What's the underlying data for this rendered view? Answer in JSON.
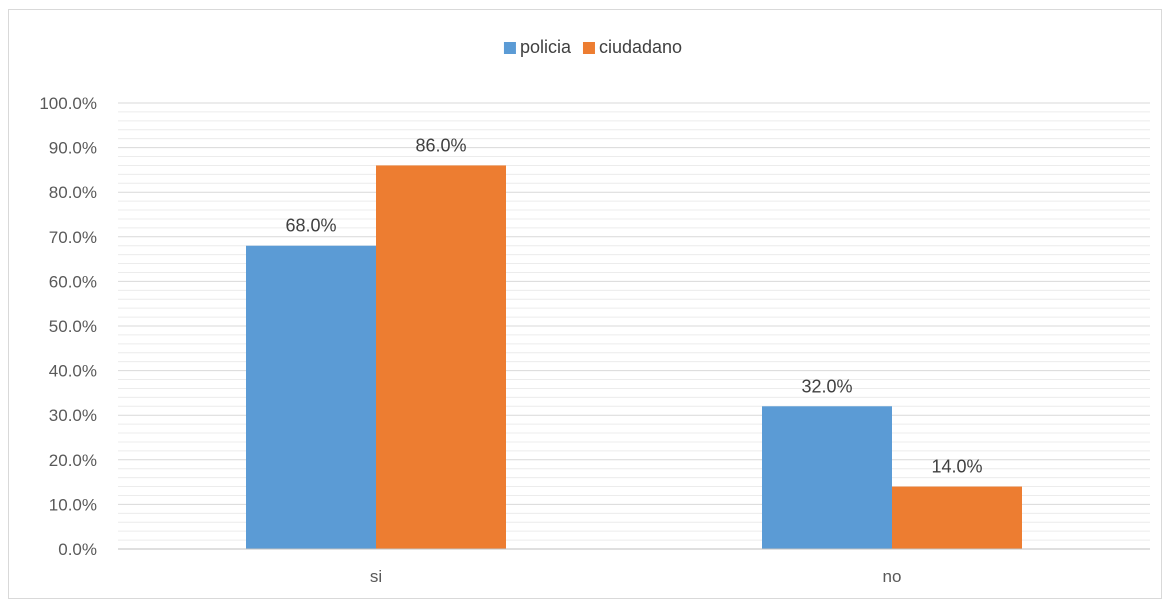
{
  "chart_data": {
    "type": "bar",
    "categories": [
      "si",
      "no"
    ],
    "series": [
      {
        "name": "policia",
        "values": [
          68.0,
          32.0
        ],
        "color": "#5b9bd5"
      },
      {
        "name": "ciudadano",
        "values": [
          86.0,
          14.0
        ],
        "color": "#ed7d31"
      }
    ],
    "data_labels": [
      [
        "68.0%",
        "32.0%"
      ],
      [
        "86.0%",
        "14.0%"
      ]
    ],
    "y_ticks": [
      0,
      10,
      20,
      30,
      40,
      50,
      60,
      70,
      80,
      90,
      100
    ],
    "y_tick_labels": [
      "0.0%",
      "10.0%",
      "20.0%",
      "30.0%",
      "40.0%",
      "50.0%",
      "60.0%",
      "70.0%",
      "80.0%",
      "90.0%",
      "100.0%"
    ],
    "ylim": [
      0,
      100
    ],
    "title": "",
    "xlabel": "",
    "ylabel": "",
    "legend_position": "top",
    "grid": true,
    "gridline_color": "#d9d9d9",
    "minor_gridline_color": "#ececec",
    "axis_line_color": "#bfbfbf"
  }
}
